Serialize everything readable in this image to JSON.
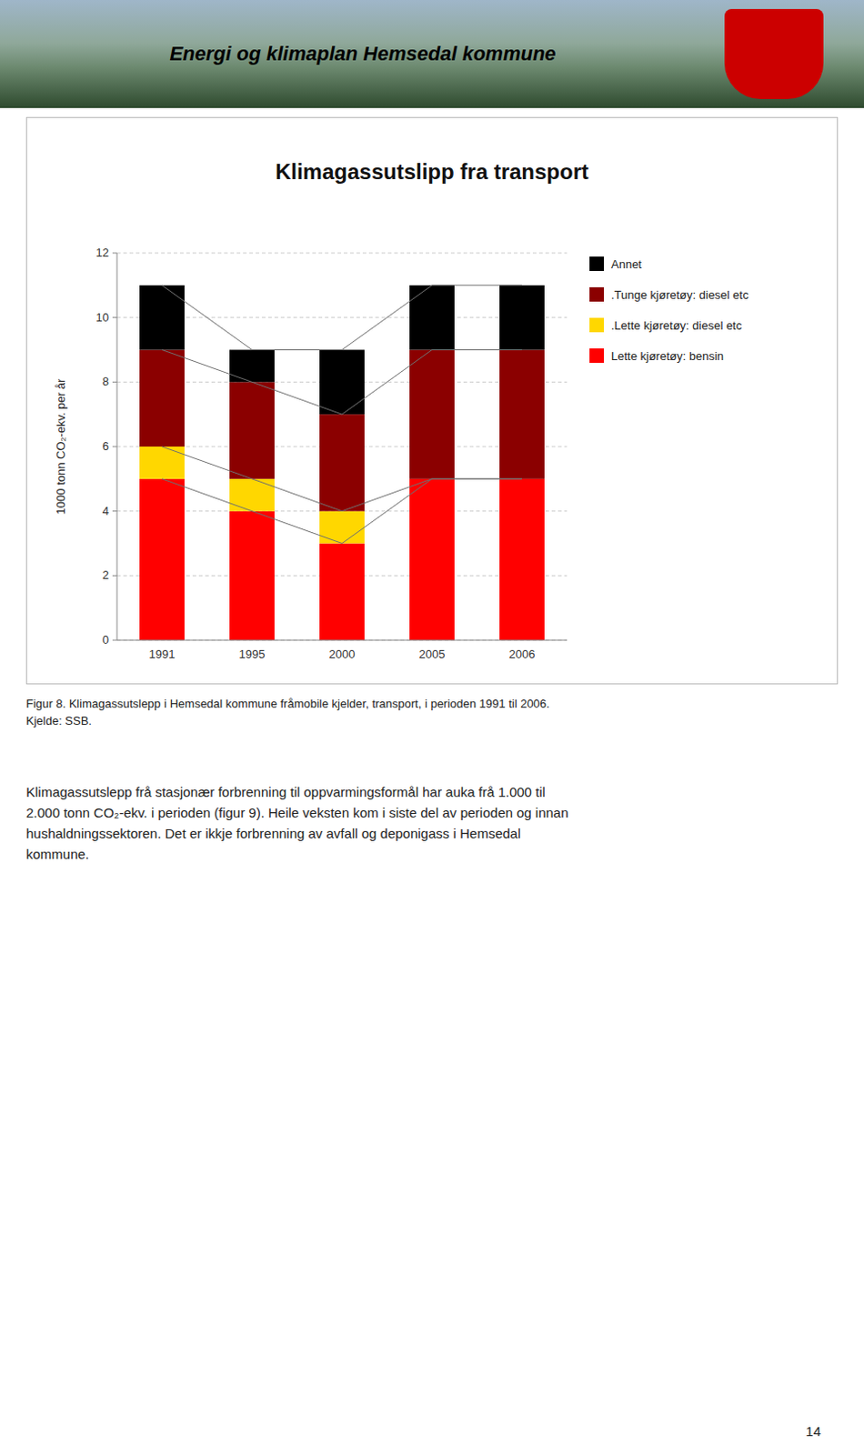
{
  "chart_data": {
    "type": "bar",
    "stacked": true,
    "title": "Klimagassutslipp fra transport",
    "categories": [
      "1991",
      "1995",
      "2000",
      "2005",
      "2006"
    ],
    "series": [
      {
        "name": "Lette kjøretøy: bensin",
        "color": "#FF0000",
        "values": [
          5.0,
          4.0,
          3.0,
          5.0,
          5.0
        ]
      },
      {
        "name": ".Lette kjøretøy: diesel etc",
        "color": "#FFD700",
        "values": [
          1.0,
          1.0,
          1.0,
          0.0,
          0.0
        ]
      },
      {
        "name": ".Tunge kjøretøy: diesel etc",
        "color": "#8B0000",
        "values": [
          3.0,
          3.0,
          3.0,
          4.0,
          4.0
        ]
      },
      {
        "name": "Annet",
        "color": "#000000",
        "values": [
          2.0,
          1.0,
          2.0,
          2.0,
          2.0
        ]
      }
    ],
    "ylabel": "1000 tonn CO₂-ekv. per år",
    "ylim": [
      0,
      12
    ],
    "yticks": [
      0,
      2,
      4,
      6,
      8,
      10,
      12
    ],
    "grid": true,
    "legend": "right"
  },
  "page": {
    "header": "Energi og klimaplan Hemsedal kommune",
    "caption": [
      "Figur 8. Klimagassutslepp i Hemsedal kommune fråmobile kjelder, transport, i perioden 1991 til 2006.",
      "Kjelde: SSB."
    ],
    "body": [
      "Klimagassutslepp frå stasjonær forbrenning til oppvarmingsformål har auka frå 1.000 til",
      "2.000 tonn CO₂-ekv. i perioden (figur 9). Heile veksten kom i siste del av perioden og innan",
      "hushaldningssektoren. Det er ikkje forbrenning av avfall og deponigass i Hemsedal",
      "kommune."
    ],
    "page_number": "14"
  }
}
